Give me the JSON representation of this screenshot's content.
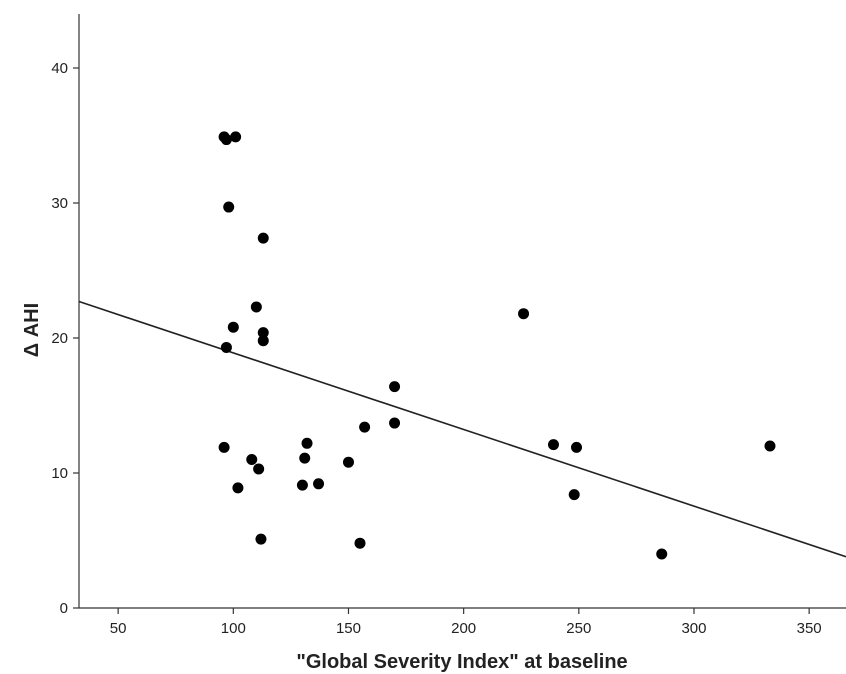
{
  "chart_data": {
    "type": "scatter",
    "title": "",
    "xlabel": "\"Global Severity Index\" at baseline",
    "ylabel": "Δ AHI",
    "xlim": [
      33,
      366
    ],
    "ylim": [
      0,
      44
    ],
    "x_ticks": [
      "50",
      "100",
      "150",
      "200",
      "250",
      "300",
      "350"
    ],
    "y_ticks": [
      "0",
      "10",
      "20",
      "30",
      "40"
    ],
    "grid": false,
    "legend": "none",
    "points": [
      {
        "x": 96,
        "y": 34.9
      },
      {
        "x": 97,
        "y": 34.7
      },
      {
        "x": 101,
        "y": 34.9
      },
      {
        "x": 98,
        "y": 29.7
      },
      {
        "x": 113,
        "y": 27.4
      },
      {
        "x": 110,
        "y": 22.3
      },
      {
        "x": 100,
        "y": 20.8
      },
      {
        "x": 113,
        "y": 20.4
      },
      {
        "x": 113,
        "y": 19.8
      },
      {
        "x": 97,
        "y": 19.3
      },
      {
        "x": 96,
        "y": 11.9
      },
      {
        "x": 108,
        "y": 11.0
      },
      {
        "x": 111,
        "y": 10.3
      },
      {
        "x": 102,
        "y": 8.9
      },
      {
        "x": 112,
        "y": 5.1
      },
      {
        "x": 132,
        "y": 12.2
      },
      {
        "x": 131,
        "y": 11.1
      },
      {
        "x": 130,
        "y": 9.1
      },
      {
        "x": 137,
        "y": 9.2
      },
      {
        "x": 150,
        "y": 10.8
      },
      {
        "x": 155,
        "y": 4.8
      },
      {
        "x": 157,
        "y": 13.4
      },
      {
        "x": 170,
        "y": 16.4
      },
      {
        "x": 170,
        "y": 13.7
      },
      {
        "x": 226,
        "y": 21.8
      },
      {
        "x": 239,
        "y": 12.1
      },
      {
        "x": 249,
        "y": 11.9
      },
      {
        "x": 248,
        "y": 8.4
      },
      {
        "x": 286,
        "y": 4.0
      },
      {
        "x": 333,
        "y": 12.0
      }
    ],
    "fit_line": {
      "x": [
        33,
        366
      ],
      "y": [
        22.7,
        3.8
      ]
    },
    "colors": {
      "points": "#000000",
      "line": "#222222",
      "axis": "#333333"
    }
  }
}
